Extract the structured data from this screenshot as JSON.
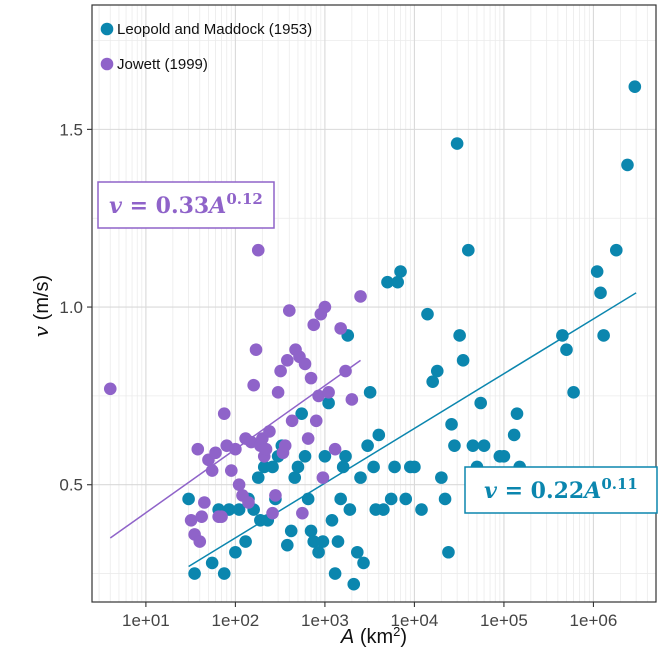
{
  "chart_data": {
    "type": "scatter",
    "xscale": "log",
    "xlabel": {
      "var": "A",
      "unit_prefix": " (km",
      "unit_sup": "2",
      "unit_suffix": ")"
    },
    "ylabel": {
      "var": "v",
      "unit": " (m/s)"
    },
    "xlim": [
      2.5,
      5000000
    ],
    "ylim": [
      0.17,
      1.85
    ],
    "xticks": [
      {
        "value": 10,
        "label": "1e+01"
      },
      {
        "value": 100,
        "label": "1e+02"
      },
      {
        "value": 1000,
        "label": "1e+03"
      },
      {
        "value": 10000,
        "label": "1e+04"
      },
      {
        "value": 100000,
        "label": "1e+05"
      },
      {
        "value": 1000000,
        "label": "1e+06"
      }
    ],
    "yticks": [
      {
        "value": 0.5,
        "label": "0.5"
      },
      {
        "value": 1.0,
        "label": "1.0"
      },
      {
        "value": 1.5,
        "label": "1.5"
      }
    ],
    "grid": true,
    "legend_position": "top-left",
    "series": [
      {
        "name": "Leopold and Maddock (1953)",
        "color": "#0B86AE",
        "points": [
          [
            30,
            0.46
          ],
          [
            35,
            0.25
          ],
          [
            55,
            0.28
          ],
          [
            65,
            0.43
          ],
          [
            75,
            0.25
          ],
          [
            85,
            0.43
          ],
          [
            100,
            0.31
          ],
          [
            110,
            0.43
          ],
          [
            130,
            0.34
          ],
          [
            140,
            0.46
          ],
          [
            160,
            0.43
          ],
          [
            180,
            0.52
          ],
          [
            190,
            0.4
          ],
          [
            210,
            0.55
          ],
          [
            230,
            0.4
          ],
          [
            260,
            0.55
          ],
          [
            280,
            0.46
          ],
          [
            300,
            0.58
          ],
          [
            330,
            0.61
          ],
          [
            380,
            0.33
          ],
          [
            420,
            0.37
          ],
          [
            460,
            0.52
          ],
          [
            500,
            0.55
          ],
          [
            550,
            0.7
          ],
          [
            600,
            0.58
          ],
          [
            650,
            0.46
          ],
          [
            700,
            0.37
          ],
          [
            750,
            0.34
          ],
          [
            850,
            0.31
          ],
          [
            950,
            0.34
          ],
          [
            1000,
            0.58
          ],
          [
            1100,
            0.73
          ],
          [
            1200,
            0.4
          ],
          [
            1300,
            0.25
          ],
          [
            1400,
            0.34
          ],
          [
            1500,
            0.46
          ],
          [
            1600,
            0.55
          ],
          [
            1700,
            0.58
          ],
          [
            1800,
            0.92
          ],
          [
            1900,
            0.43
          ],
          [
            2100,
            0.22
          ],
          [
            2300,
            0.31
          ],
          [
            2500,
            0.52
          ],
          [
            2700,
            0.28
          ],
          [
            3000,
            0.61
          ],
          [
            3200,
            0.76
          ],
          [
            3500,
            0.55
          ],
          [
            3700,
            0.43
          ],
          [
            4000,
            0.64
          ],
          [
            4500,
            0.43
          ],
          [
            5000,
            1.07
          ],
          [
            5500,
            0.46
          ],
          [
            6000,
            0.55
          ],
          [
            6500,
            1.07
          ],
          [
            7000,
            1.1
          ],
          [
            8000,
            0.46
          ],
          [
            9000,
            0.55
          ],
          [
            10000,
            0.55
          ],
          [
            12000,
            0.43
          ],
          [
            14000,
            0.98
          ],
          [
            16000,
            0.79
          ],
          [
            18000,
            0.82
          ],
          [
            20000,
            0.52
          ],
          [
            22000,
            0.46
          ],
          [
            24000,
            0.31
          ],
          [
            26000,
            0.67
          ],
          [
            28000,
            0.61
          ],
          [
            30000,
            1.46
          ],
          [
            32000,
            0.92
          ],
          [
            35000,
            0.85
          ],
          [
            40000,
            1.16
          ],
          [
            45000,
            0.61
          ],
          [
            50000,
            0.55
          ],
          [
            55000,
            0.73
          ],
          [
            60000,
            0.61
          ],
          [
            90000,
            0.58
          ],
          [
            100000,
            0.58
          ],
          [
            130000,
            0.64
          ],
          [
            140000,
            0.7
          ],
          [
            150000,
            0.55
          ],
          [
            450000,
            0.92
          ],
          [
            500000,
            0.88
          ],
          [
            600000,
            0.76
          ],
          [
            1100000,
            1.1
          ],
          [
            1200000,
            1.04
          ],
          [
            1300000,
            0.92
          ],
          [
            1800000,
            1.16
          ],
          [
            2400000,
            1.4
          ],
          [
            2900000,
            1.62
          ]
        ],
        "fit": {
          "equation": {
            "var": "v",
            "eq": " = 0.22",
            "base": "A",
            "exp": "0.11"
          },
          "from": 30,
          "to": 3000000,
          "line_points": [
            [
              30,
              0.27
            ],
            [
              3000000,
              1.04
            ]
          ]
        }
      },
      {
        "name": "Jowett (1999)",
        "color": "#8F63C9",
        "points": [
          [
            4,
            0.77
          ],
          [
            32,
            0.4
          ],
          [
            35,
            0.36
          ],
          [
            38,
            0.6
          ],
          [
            40,
            0.34
          ],
          [
            42,
            0.41
          ],
          [
            45,
            0.45
          ],
          [
            50,
            0.57
          ],
          [
            55,
            0.54
          ],
          [
            60,
            0.59
          ],
          [
            65,
            0.41
          ],
          [
            70,
            0.41
          ],
          [
            75,
            0.7
          ],
          [
            80,
            0.61
          ],
          [
            90,
            0.54
          ],
          [
            100,
            0.6
          ],
          [
            110,
            0.5
          ],
          [
            120,
            0.47
          ],
          [
            130,
            0.63
          ],
          [
            140,
            0.45
          ],
          [
            150,
            0.62
          ],
          [
            160,
            0.78
          ],
          [
            170,
            0.88
          ],
          [
            180,
            1.16
          ],
          [
            190,
            0.61
          ],
          [
            200,
            0.63
          ],
          [
            210,
            0.58
          ],
          [
            220,
            0.6
          ],
          [
            240,
            0.65
          ],
          [
            260,
            0.42
          ],
          [
            280,
            0.47
          ],
          [
            300,
            0.76
          ],
          [
            320,
            0.82
          ],
          [
            340,
            0.59
          ],
          [
            360,
            0.61
          ],
          [
            380,
            0.85
          ],
          [
            400,
            0.99
          ],
          [
            430,
            0.68
          ],
          [
            470,
            0.88
          ],
          [
            520,
            0.86
          ],
          [
            560,
            0.42
          ],
          [
            600,
            0.84
          ],
          [
            650,
            0.63
          ],
          [
            700,
            0.8
          ],
          [
            750,
            0.95
          ],
          [
            800,
            0.68
          ],
          [
            850,
            0.75
          ],
          [
            900,
            0.98
          ],
          [
            950,
            0.52
          ],
          [
            1000,
            1.0
          ],
          [
            1100,
            0.76
          ],
          [
            1300,
            0.6
          ],
          [
            1500,
            0.94
          ],
          [
            1700,
            0.82
          ],
          [
            2000,
            0.74
          ],
          [
            2500,
            1.03
          ]
        ],
        "fit": {
          "equation": {
            "var": "v",
            "eq": " = 0.33",
            "base": "A",
            "exp": "0.12"
          },
          "from": 4,
          "to": 2500,
          "line_points": [
            [
              4,
              0.35
            ],
            [
              2500,
              0.85
            ]
          ]
        }
      }
    ]
  }
}
